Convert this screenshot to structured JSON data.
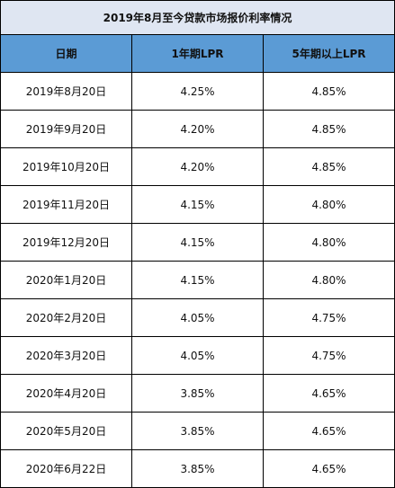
{
  "table": {
    "title": "2019年8月至今贷款市场报价利率情况",
    "headers": [
      "日期",
      "1年期LPR",
      "5年期以上LPR"
    ],
    "rows": [
      {
        "date": "2019年8月20日",
        "lpr_1y": "4.25%",
        "lpr_5y": "4.85%"
      },
      {
        "date": "2019年9月20日",
        "lpr_1y": "4.20%",
        "lpr_5y": "4.85%"
      },
      {
        "date": "2019年10月20日",
        "lpr_1y": "4.20%",
        "lpr_5y": "4.85%"
      },
      {
        "date": "2019年11月20日",
        "lpr_1y": "4.15%",
        "lpr_5y": "4.80%"
      },
      {
        "date": "2019年12月20日",
        "lpr_1y": "4.15%",
        "lpr_5y": "4.80%"
      },
      {
        "date": "2020年1月20日",
        "lpr_1y": "4.15%",
        "lpr_5y": "4.80%"
      },
      {
        "date": "2020年2月20日",
        "lpr_1y": "4.05%",
        "lpr_5y": "4.75%"
      },
      {
        "date": "2020年3月20日",
        "lpr_1y": "4.05%",
        "lpr_5y": "4.75%"
      },
      {
        "date": "2020年4月20日",
        "lpr_1y": "3.85%",
        "lpr_5y": "4.65%"
      },
      {
        "date": "2020年5月20日",
        "lpr_1y": "3.85%",
        "lpr_5y": "4.65%"
      },
      {
        "date": "2020年6月22日",
        "lpr_1y": "3.85%",
        "lpr_5y": "4.65%"
      }
    ]
  },
  "colors": {
    "title_background": "#dfe6f2",
    "header_background": "#5b9bd5",
    "border": "#000000"
  }
}
